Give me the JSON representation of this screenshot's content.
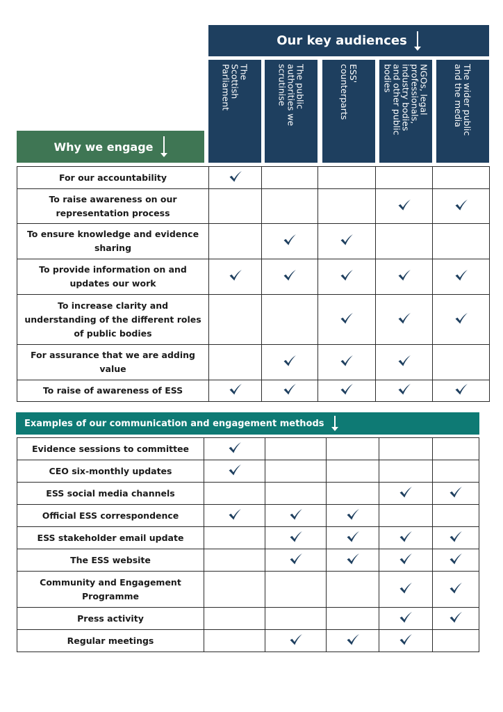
{
  "header": {
    "audiences_title": "Our key audiences",
    "why_title": "Why we engage",
    "methods_title": "Examples of our communication and engagement methods"
  },
  "colors": {
    "navy": "#1e3f5f",
    "green": "#3f7654",
    "teal": "#0e7a74",
    "tick": "#1e3f5f"
  },
  "audiences": [
    {
      "label": "The\nScottish\nParliament"
    },
    {
      "label": "The public\nauthorities we\nscrutinise"
    },
    {
      "label": "ESS'\ncounterparts"
    },
    {
      "label": "NGOs, legal\nprofessionals,\nindustry bodies\nand other public\nbodies"
    },
    {
      "label": "The wider public\nand the media"
    }
  ],
  "why_rows": [
    {
      "label": "For our accountability",
      "checks": [
        true,
        false,
        false,
        false,
        false
      ]
    },
    {
      "label": "To raise awareness on our representation process",
      "checks": [
        false,
        false,
        false,
        true,
        true
      ]
    },
    {
      "label": "To ensure knowledge and evidence sharing",
      "checks": [
        false,
        true,
        true,
        false,
        false
      ]
    },
    {
      "label": "To provide information on and updates our work",
      "checks": [
        true,
        true,
        true,
        true,
        true
      ]
    },
    {
      "label": "To increase clarity and understanding of the different roles of public bodies",
      "checks": [
        false,
        false,
        true,
        true,
        true
      ]
    },
    {
      "label": "For assurance that we are adding value",
      "checks": [
        false,
        true,
        true,
        true,
        false
      ]
    },
    {
      "label": "To raise of awareness of ESS",
      "checks": [
        true,
        true,
        true,
        true,
        true
      ]
    }
  ],
  "method_rows": [
    {
      "label": "Evidence sessions to committee",
      "checks": [
        true,
        false,
        false,
        false,
        false
      ]
    },
    {
      "label": "CEO six-monthly updates",
      "checks": [
        true,
        false,
        false,
        false,
        false
      ]
    },
    {
      "label": "ESS social media channels",
      "checks": [
        false,
        false,
        false,
        true,
        true
      ]
    },
    {
      "label": "Official ESS correspondence",
      "checks": [
        true,
        true,
        true,
        false,
        false
      ]
    },
    {
      "label": "ESS stakeholder email update",
      "checks": [
        false,
        true,
        true,
        true,
        true
      ]
    },
    {
      "label": "The ESS website",
      "checks": [
        false,
        true,
        true,
        true,
        true
      ]
    },
    {
      "label": "Community and Engagement Programme",
      "checks": [
        false,
        false,
        false,
        true,
        true
      ]
    },
    {
      "label": "Press activity",
      "checks": [
        false,
        false,
        false,
        true,
        true
      ]
    },
    {
      "label": "Regular meetings",
      "checks": [
        false,
        true,
        true,
        true,
        false
      ]
    }
  ]
}
